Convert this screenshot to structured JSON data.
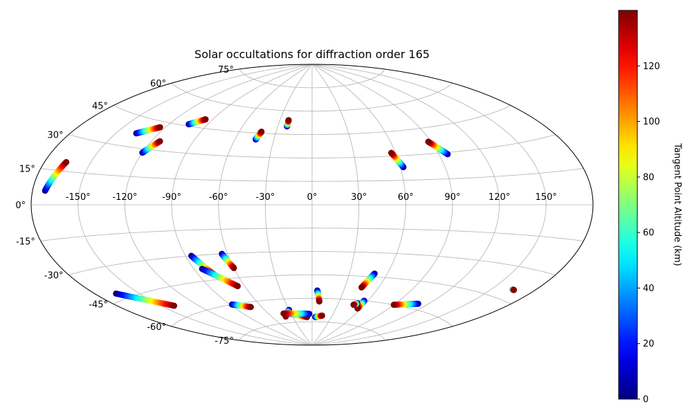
{
  "chart_data": {
    "type": "scatter",
    "projection": "aitoff",
    "title": "Solar occultations for diffraction order 165",
    "grid": true,
    "lon_ticks": [
      -150,
      -120,
      -90,
      -60,
      -30,
      0,
      30,
      60,
      90,
      120,
      150
    ],
    "lon_tick_labels": [
      "-150°",
      "-120°",
      "-90°",
      "-60°",
      "-30°",
      "0°",
      "30°",
      "60°",
      "90°",
      "120°",
      "150°"
    ],
    "lat_ticks": [
      -75,
      -60,
      -45,
      -30,
      -15,
      0,
      15,
      30,
      45,
      60,
      75
    ],
    "lat_tick_labels": [
      "-75°",
      "-60°",
      "-45°",
      "-30°",
      "-15°",
      "0°",
      "15°",
      "30°",
      "45°",
      "60°",
      "75°"
    ],
    "colorbar": {
      "label": "Tangent Point Altitude (km)",
      "min": 0,
      "max": 140,
      "ticks": [
        0,
        20,
        40,
        60,
        80,
        100,
        120
      ],
      "tick_labels": [
        "0",
        "20",
        "40",
        "60",
        "80",
        "100",
        "120"
      ],
      "colormap": "jet"
    },
    "tracks": [
      {
        "start": [
          -172,
          6
        ],
        "end": [
          -166,
          19
        ]
      },
      {
        "start": [
          -136,
          37
        ],
        "end": [
          -124,
          42
        ]
      },
      {
        "start": [
          -120,
          28
        ],
        "end": [
          -114,
          35
        ]
      },
      {
        "start": [
          -105,
          46
        ],
        "end": [
          -96,
          50
        ]
      },
      {
        "start": [
          -44,
          41
        ],
        "end": [
          -42,
          46
        ]
      },
      {
        "start": [
          -22,
          50
        ],
        "end": [
          -22,
          54
        ]
      },
      {
        "start": [
          62,
          23
        ],
        "end": [
          57,
          32
        ]
      },
      {
        "start": [
          96,
          29
        ],
        "end": [
          88,
          37
        ]
      },
      {
        "start": [
          -166,
          -42
        ],
        "end": [
          -140,
          -54
        ]
      },
      {
        "start": [
          -86,
          -30
        ],
        "end": [
          -78,
          -42
        ]
      },
      {
        "start": [
          -84,
          -38
        ],
        "end": [
          -66,
          -50
        ]
      },
      {
        "start": [
          -64,
          -30
        ],
        "end": [
          -60,
          -39
        ]
      },
      {
        "start": [
          -88,
          -60
        ],
        "end": [
          -72,
          -63
        ]
      },
      {
        "start": [
          -30,
          -67
        ],
        "end": [
          -40,
          -71
        ]
      },
      {
        "start": [
          -36,
          -69
        ],
        "end": [
          -8,
          -72
        ]
      },
      {
        "start": [
          -4,
          -70
        ],
        "end": [
          -40,
          -69
        ]
      },
      {
        "start": [
          5,
          -55
        ],
        "end": [
          8,
          -62
        ]
      },
      {
        "start": [
          5,
          -72
        ],
        "end": [
          15,
          -71
        ]
      },
      {
        "start": [
          50,
          -43
        ],
        "end": [
          45,
          -52
        ]
      },
      {
        "start": [
          54,
          -63
        ],
        "end": [
          52,
          -62
        ]
      },
      {
        "start": [
          56,
          -60
        ],
        "end": [
          56,
          -65
        ]
      },
      {
        "start": [
          51,
          -62
        ],
        "end": [
          48,
          -63
        ]
      },
      {
        "start": [
          111,
          -57
        ],
        "end": [
          90,
          -60
        ]
      },
      {
        "start": [
          165,
          -40
        ],
        "end": [
          166,
          -40
        ]
      }
    ]
  }
}
